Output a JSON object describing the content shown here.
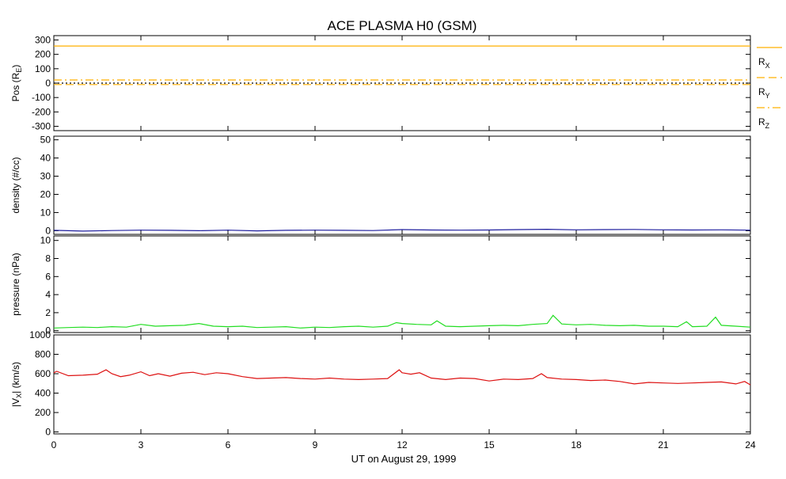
{
  "title": "ACE PLASMA H0 (GSM)",
  "xlabel": "UT on August 29, 1999",
  "x_ticks": [
    "0",
    "3",
    "6",
    "9",
    "12",
    "15",
    "18",
    "21",
    "24"
  ],
  "chart_data": [
    {
      "type": "line",
      "ylabel": "Pos (R",
      "ylabel_sub": "E",
      "ylabel_tail": ")",
      "ylim": [
        -330,
        330
      ],
      "y_ticks": [
        300,
        200,
        100,
        0,
        -100,
        -200,
        -300
      ],
      "xlim": [
        0,
        24
      ],
      "legend_placement": "right",
      "series": [
        {
          "name": "R",
          "sub": "X",
          "color": "#FFB000",
          "style": "solid",
          "x": [
            0,
            24
          ],
          "y": [
            258,
            258
          ]
        },
        {
          "name": "R",
          "sub": "Y",
          "color": "#FFB000",
          "style": "dashed",
          "x": [
            0,
            24
          ],
          "y": [
            -10,
            -10
          ]
        },
        {
          "name": "R",
          "sub": "Z",
          "color": "#FFB000",
          "style": "dashdot",
          "x": [
            0,
            24
          ],
          "y": [
            22,
            22
          ]
        },
        {
          "color": "#000000",
          "style": "dotted",
          "x": [
            0,
            24
          ],
          "y": [
            0,
            0
          ]
        }
      ]
    },
    {
      "type": "line",
      "ylabel": "density (#/cc)",
      "ylim": [
        -2,
        52
      ],
      "y_ticks": [
        50,
        40,
        30,
        20,
        10,
        0
      ],
      "xlim": [
        0,
        24
      ],
      "series": [
        {
          "color": "#1E1E9E",
          "x": [
            0,
            1,
            2,
            3,
            4,
            5,
            6,
            7,
            8,
            9,
            10,
            11,
            12,
            13,
            14,
            15,
            16,
            17,
            18,
            19,
            20,
            21,
            22,
            23,
            24
          ],
          "y": [
            0.2,
            -0.2,
            0.1,
            0.3,
            0.2,
            0.0,
            0.3,
            -0.1,
            0.2,
            0.3,
            0.2,
            0.1,
            0.6,
            0.4,
            0.3,
            0.4,
            0.6,
            0.8,
            0.5,
            0.6,
            0.7,
            0.5,
            0.4,
            0.5,
            0.3
          ]
        }
      ]
    },
    {
      "type": "line",
      "ylabel": "pressure (nPa)",
      "ylim": [
        -0.2,
        10.5
      ],
      "y_ticks": [
        10,
        8,
        6,
        4,
        2,
        0
      ],
      "xlim": [
        0,
        24
      ],
      "series": [
        {
          "color": "#22DD22",
          "x": [
            0,
            0.5,
            1,
            1.5,
            2,
            2.5,
            3,
            3.5,
            4,
            4.5,
            5,
            5.5,
            6,
            6.5,
            7,
            7.5,
            8,
            8.5,
            9,
            9.5,
            10,
            10.5,
            11,
            11.5,
            11.8,
            12,
            12.5,
            13,
            13.2,
            13.5,
            14,
            14.5,
            15,
            15.5,
            16,
            16.5,
            17,
            17.2,
            17.5,
            18,
            18.5,
            19,
            19.5,
            20,
            20.5,
            21,
            21.5,
            21.8,
            22,
            22.5,
            22.8,
            23,
            23.5,
            24
          ],
          "y": [
            0.3,
            0.35,
            0.4,
            0.35,
            0.45,
            0.4,
            0.7,
            0.5,
            0.55,
            0.6,
            0.8,
            0.5,
            0.45,
            0.5,
            0.35,
            0.4,
            0.45,
            0.3,
            0.4,
            0.35,
            0.45,
            0.5,
            0.4,
            0.5,
            0.9,
            0.8,
            0.7,
            0.65,
            1.1,
            0.5,
            0.45,
            0.5,
            0.55,
            0.6,
            0.55,
            0.7,
            0.8,
            1.7,
            0.75,
            0.65,
            0.7,
            0.6,
            0.55,
            0.6,
            0.5,
            0.5,
            0.45,
            1.0,
            0.45,
            0.5,
            1.5,
            0.6,
            0.5,
            0.4
          ]
        }
      ]
    },
    {
      "type": "line",
      "ylabel": "|V",
      "ylabel_sub": "X",
      "ylabel_tail": "| (km/s)",
      "ylim": [
        -20,
        1000
      ],
      "y_ticks": [
        1000,
        800,
        600,
        400,
        200,
        0
      ],
      "xlim": [
        0,
        24
      ],
      "series": [
        {
          "color": "#DD1111",
          "x": [
            0,
            0.1,
            0.5,
            1,
            1.5,
            1.8,
            2,
            2.3,
            2.6,
            3,
            3.3,
            3.6,
            4,
            4.4,
            4.8,
            5.2,
            5.6,
            6,
            6.5,
            7,
            7.5,
            8,
            8.5,
            9,
            9.5,
            10,
            10.5,
            11,
            11.5,
            11.9,
            12,
            12.3,
            12.6,
            13,
            13.5,
            14,
            14.5,
            15,
            15.5,
            16,
            16.5,
            16.8,
            17,
            17.5,
            18,
            18.5,
            19,
            19.5,
            20,
            20.5,
            21,
            21.5,
            22,
            22.5,
            23,
            23.5,
            23.8,
            24
          ],
          "y": [
            610,
            625,
            580,
            585,
            595,
            640,
            600,
            570,
            585,
            620,
            580,
            600,
            575,
            605,
            615,
            590,
            610,
            600,
            570,
            550,
            555,
            560,
            550,
            545,
            555,
            545,
            540,
            545,
            550,
            640,
            610,
            595,
            610,
            555,
            540,
            555,
            550,
            525,
            545,
            540,
            550,
            600,
            560,
            545,
            540,
            530,
            535,
            520,
            495,
            510,
            505,
            500,
            505,
            510,
            515,
            495,
            520,
            485
          ]
        }
      ]
    }
  ]
}
